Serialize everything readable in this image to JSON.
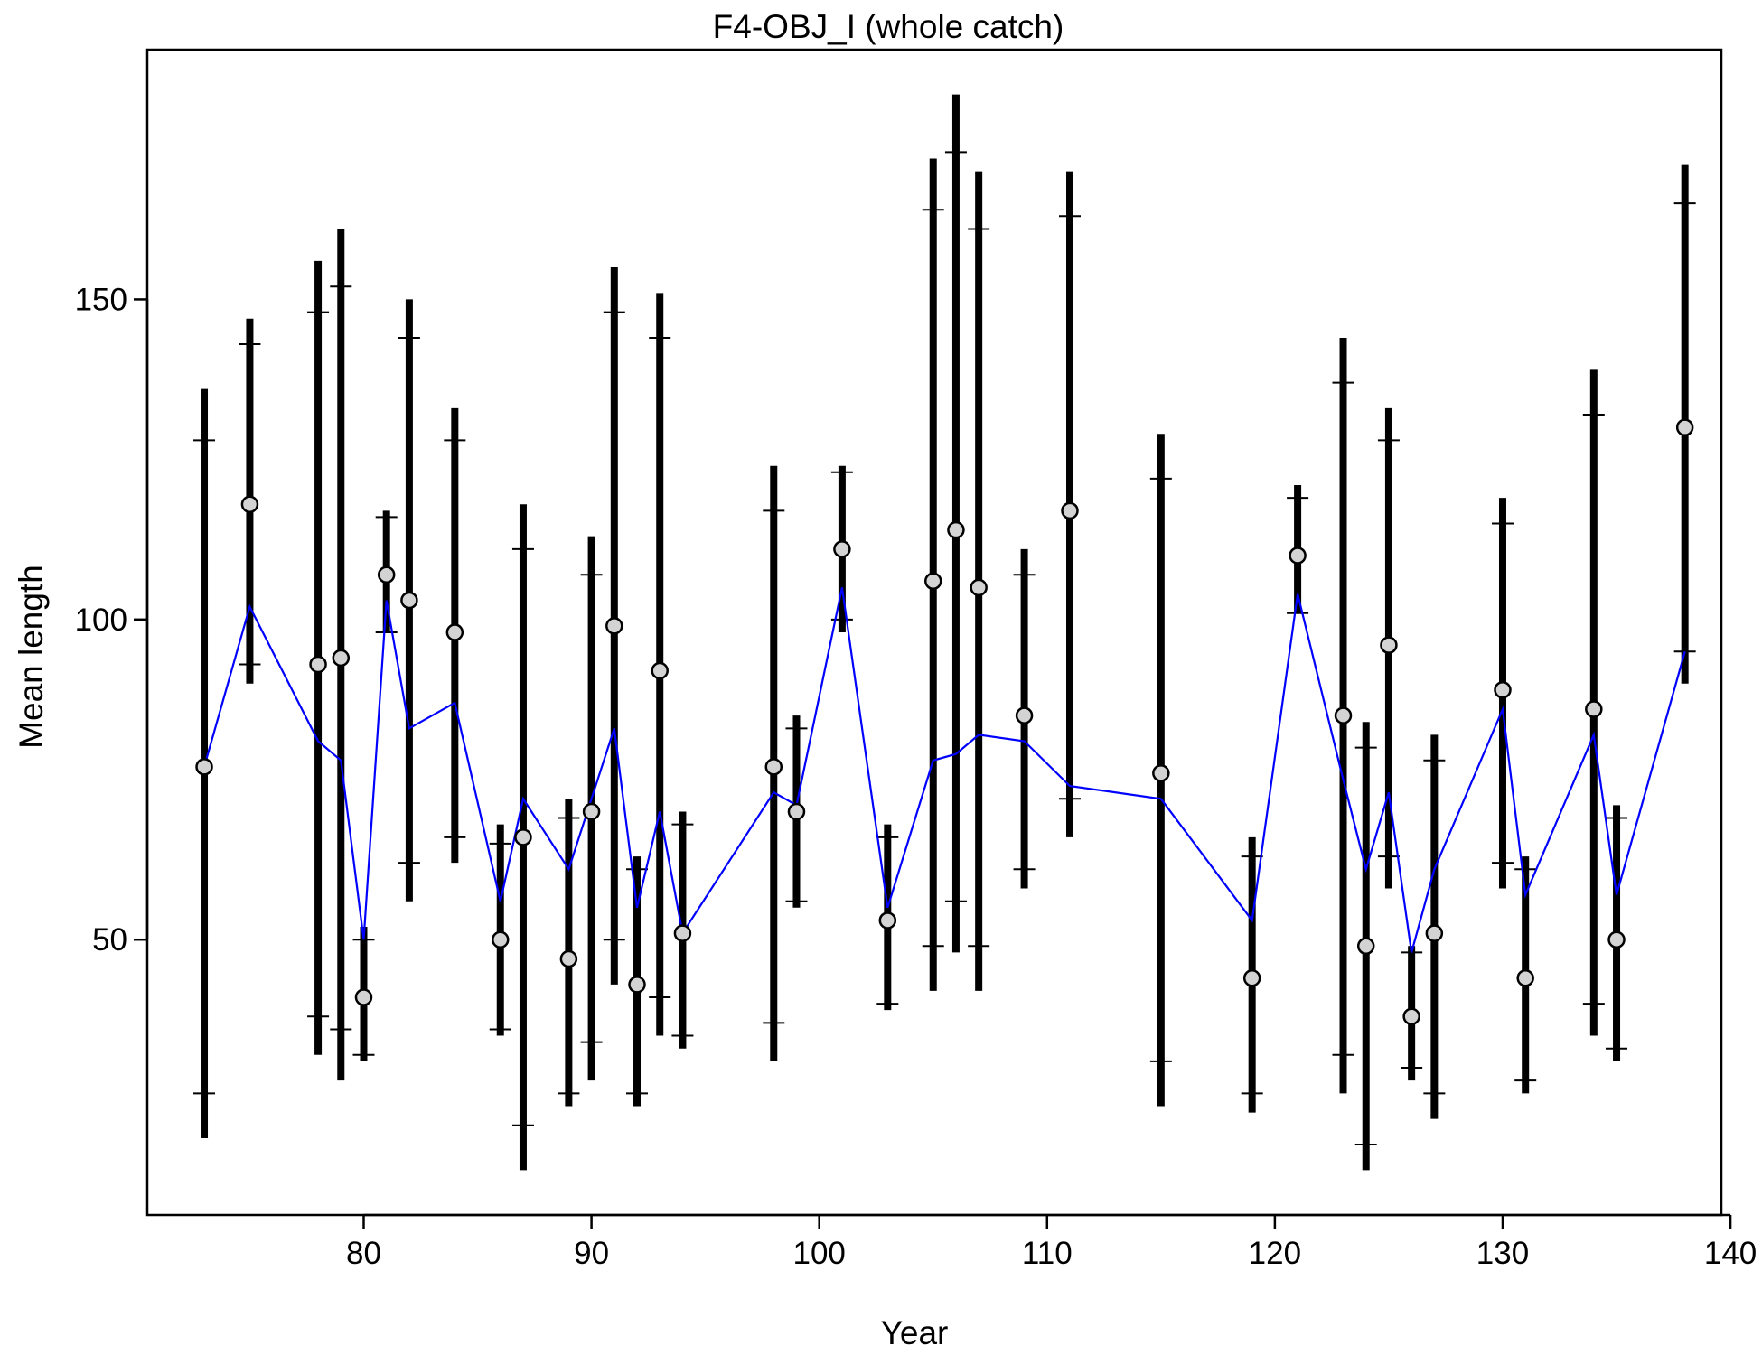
{
  "chart_data": {
    "type": "scatter",
    "title": "F4-OBJ_I (whole catch)",
    "xlabel": "Year",
    "ylabel": "Mean length",
    "xlim": [
      70.5,
      139.6
    ],
    "ylim": [
      7,
      189
    ],
    "xticks": [
      80,
      90,
      100,
      110,
      120,
      130,
      140
    ],
    "yticks": [
      50,
      100,
      150
    ],
    "grid": false,
    "colors": {
      "observed_fill": "#d3d3d3",
      "observed_stroke": "#000000",
      "expected_line": "#0000ff",
      "interval": "#000000"
    },
    "series": [
      {
        "name": "",
        "role": "observed",
        "x": [
          73,
          75,
          78,
          79,
          80,
          81,
          82,
          84,
          86,
          87,
          89,
          90,
          91,
          92,
          93,
          94,
          98,
          99,
          101,
          103,
          105,
          106,
          107,
          109,
          111,
          115,
          119,
          121,
          123,
          124,
          125,
          126,
          127,
          130,
          131,
          134,
          135,
          138
        ],
        "y": [
          77,
          118,
          93,
          94,
          41,
          107,
          103,
          98,
          50,
          66,
          47,
          70,
          99,
          43,
          92,
          51,
          77,
          70,
          111,
          53,
          106,
          114,
          105,
          85,
          117,
          76,
          44,
          110,
          85,
          49,
          96,
          38,
          51,
          89,
          44,
          86,
          50,
          130
        ]
      },
      {
        "name": "",
        "role": "expected",
        "x": [
          73,
          75,
          78,
          79,
          80,
          81,
          82,
          84,
          86,
          87,
          89,
          90,
          91,
          92,
          93,
          94,
          98,
          99,
          101,
          103,
          105,
          106,
          107,
          109,
          111,
          115,
          119,
          121,
          123,
          124,
          125,
          126,
          127,
          130,
          131,
          134,
          135,
          138
        ],
        "y": [
          77,
          102,
          81,
          78,
          50,
          103,
          83,
          87,
          56,
          72,
          61,
          72,
          83,
          55,
          70,
          51,
          73,
          71,
          105,
          55,
          78,
          79,
          82,
          81,
          74,
          72,
          53,
          104,
          75,
          61,
          73,
          48,
          61,
          86,
          57,
          82,
          57,
          95
        ]
      }
    ],
    "intervals": {
      "x": [
        73,
        75,
        78,
        79,
        80,
        81,
        82,
        84,
        86,
        87,
        89,
        90,
        91,
        92,
        93,
        94,
        98,
        99,
        101,
        103,
        105,
        106,
        107,
        109,
        111,
        115,
        119,
        121,
        123,
        124,
        125,
        126,
        127,
        130,
        131,
        134,
        135,
        138
      ],
      "outer_low": [
        19,
        90,
        32,
        28,
        31,
        98,
        56,
        62,
        35,
        14,
        24,
        28,
        43,
        24,
        35,
        33,
        31,
        55,
        98,
        39,
        42,
        48,
        42,
        58,
        66,
        24,
        23,
        101,
        26,
        14,
        58,
        28,
        22,
        58,
        26,
        35,
        31,
        90
      ],
      "outer_high": [
        136,
        147,
        156,
        161,
        52,
        117,
        150,
        133,
        68,
        118,
        72,
        113,
        155,
        63,
        151,
        70,
        124,
        85,
        124,
        68,
        172,
        182,
        170,
        111,
        170,
        129,
        66,
        121,
        144,
        84,
        133,
        49,
        82,
        119,
        63,
        139,
        71,
        171
      ],
      "inner_low": [
        26,
        93,
        38,
        36,
        32,
        98,
        62,
        66,
        36,
        21,
        26,
        34,
        50,
        26,
        41,
        35,
        37,
        56,
        100,
        40,
        49,
        56,
        49,
        61,
        72,
        31,
        26,
        101,
        32,
        18,
        63,
        30,
        26,
        62,
        28,
        40,
        33,
        95
      ],
      "inner_high": [
        128,
        143,
        148,
        152,
        50,
        116,
        144,
        128,
        65,
        111,
        69,
        107,
        148,
        61,
        144,
        68,
        117,
        83,
        123,
        66,
        164,
        173,
        161,
        107,
        163,
        122,
        63,
        119,
        137,
        80,
        128,
        48,
        78,
        115,
        61,
        132,
        69,
        165
      ]
    }
  }
}
